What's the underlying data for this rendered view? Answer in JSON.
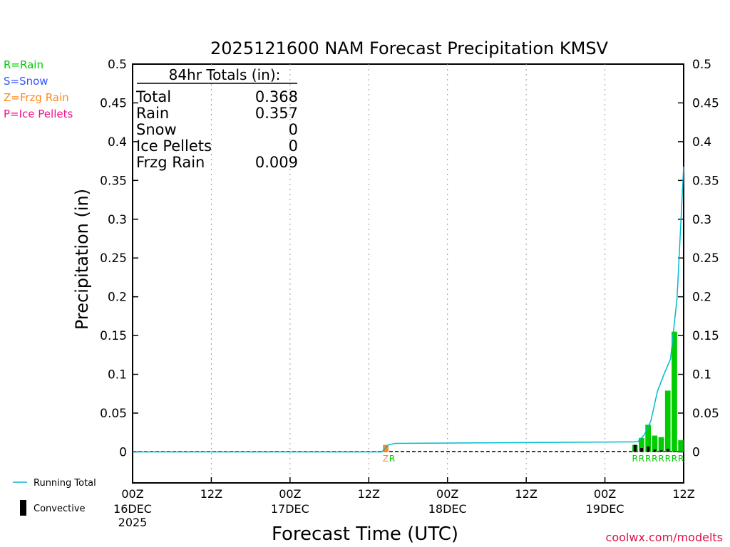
{
  "chart_data": {
    "type": "bar",
    "title": "2025121600 NAM Forecast Precipitation KMSV",
    "xlabel": "Forecast Time (UTC)",
    "ylabel": "Precipitation (in)",
    "ylim": [
      -0.04,
      0.5
    ],
    "xlim_hours": [
      0,
      84
    ],
    "y_ticks": [
      {
        "value": 0,
        "label": "0"
      },
      {
        "value": 0.05,
        "label": "0.05"
      },
      {
        "value": 0.1,
        "label": "0.1"
      },
      {
        "value": 0.15,
        "label": "0.15"
      },
      {
        "value": 0.2,
        "label": "0.2"
      },
      {
        "value": 0.25,
        "label": "0.25"
      },
      {
        "value": 0.3,
        "label": "0.3"
      },
      {
        "value": 0.35,
        "label": "0.35"
      },
      {
        "value": 0.4,
        "label": "0.4"
      },
      {
        "value": 0.45,
        "label": "0.45"
      },
      {
        "value": 0.5,
        "label": "0.5"
      }
    ],
    "x_ticks": [
      {
        "hour": 0,
        "label": "00Z",
        "date": "16DEC",
        "year": "2025"
      },
      {
        "hour": 12,
        "label": "12Z",
        "date": "",
        "year": ""
      },
      {
        "hour": 24,
        "label": "00Z",
        "date": "17DEC",
        "year": ""
      },
      {
        "hour": 36,
        "label": "12Z",
        "date": "",
        "year": ""
      },
      {
        "hour": 48,
        "label": "00Z",
        "date": "18DEC",
        "year": ""
      },
      {
        "hour": 60,
        "label": "12Z",
        "date": "",
        "year": ""
      },
      {
        "hour": 72,
        "label": "00Z",
        "date": "19DEC",
        "year": ""
      },
      {
        "hour": 84,
        "label": "12Z",
        "date": "",
        "year": ""
      }
    ],
    "gridlines_hours": [
      12,
      24,
      36,
      48,
      60,
      72
    ],
    "totals_box": {
      "heading": "84hr Totals (in):",
      "rows": [
        {
          "label": "Total",
          "value": "0.368"
        },
        {
          "label": "Rain",
          "value": "0.357"
        },
        {
          "label": "Snow",
          "value": "0"
        },
        {
          "label": "Ice Pellets",
          "value": "0"
        },
        {
          "label": "Frzg Rain",
          "value": "0.009"
        }
      ]
    },
    "type_legend": [
      {
        "label": "R=Rain",
        "color": "#00cc00"
      },
      {
        "label": "S=Snow",
        "color": "#3355ff"
      },
      {
        "label": "Z=Frzg Rain",
        "color": "#ff8822"
      },
      {
        "label": "P=Ice Pellets",
        "color": "#ee1188"
      }
    ],
    "series_legend": [
      {
        "label": "Running Total",
        "color": "#00bbcc",
        "kind": "line"
      },
      {
        "label": "Convective",
        "color": "#000000",
        "kind": "bar"
      }
    ],
    "series": [
      {
        "name": "Hourly Precipitation",
        "bars": [
          {
            "hour": 39,
            "value": 0.009,
            "type": "Z"
          },
          {
            "hour": 77,
            "value": 0.009,
            "type": "R"
          },
          {
            "hour": 78,
            "value": 0.018,
            "type": "R"
          },
          {
            "hour": 79,
            "value": 0.035,
            "type": "R"
          },
          {
            "hour": 80,
            "value": 0.021,
            "type": "R"
          },
          {
            "hour": 81,
            "value": 0.019,
            "type": "R"
          },
          {
            "hour": 82,
            "value": 0.079,
            "type": "R"
          },
          {
            "hour": 83,
            "value": 0.155,
            "type": "R"
          },
          {
            "hour": 84,
            "value": 0.015,
            "type": "R"
          }
        ]
      },
      {
        "name": "Convective",
        "bars": [
          {
            "hour": 77,
            "value": 0.009
          },
          {
            "hour": 78,
            "value": 0.005
          },
          {
            "hour": 79,
            "value": 0.007
          },
          {
            "hour": 80,
            "value": 0.003
          },
          {
            "hour": 81,
            "value": 0.002
          },
          {
            "hour": 82,
            "value": 0.004
          },
          {
            "hour": 83,
            "value": 0.001
          }
        ]
      },
      {
        "name": "Running Total",
        "x": [
          0,
          38,
          39,
          40,
          60,
          77,
          78,
          79,
          80,
          81,
          82,
          83,
          84
        ],
        "values": [
          0,
          0,
          0.009,
          0.011,
          0.012,
          0.013,
          0.022,
          0.04,
          0.078,
          0.1,
          0.12,
          0.199,
          0.368
        ]
      }
    ],
    "ptype_labels": [
      {
        "hour": 39,
        "text": "Z",
        "type": "Z"
      },
      {
        "hour": 39,
        "text": "R",
        "type": "R"
      },
      {
        "hour": 77,
        "text": "R",
        "type": "R"
      },
      {
        "hour": 78,
        "text": "R",
        "type": "R"
      },
      {
        "hour": 79,
        "text": "R",
        "type": "R"
      },
      {
        "hour": 80,
        "text": "R",
        "type": "R"
      },
      {
        "hour": 81,
        "text": "R",
        "type": "R"
      },
      {
        "hour": 82,
        "text": "R",
        "type": "R"
      },
      {
        "hour": 83,
        "text": "R",
        "type": "R"
      },
      {
        "hour": 84,
        "text": "R",
        "type": "R"
      }
    ],
    "credit": "coolwx.com/modelts"
  },
  "colors": {
    "rain": "#00cc00",
    "snow": "#3355ff",
    "frzg_rain": "#ff8822",
    "ice_pellets": "#ee1188",
    "running_total": "#00bbcc",
    "convective": "#000000",
    "credit": "#dd1144"
  }
}
